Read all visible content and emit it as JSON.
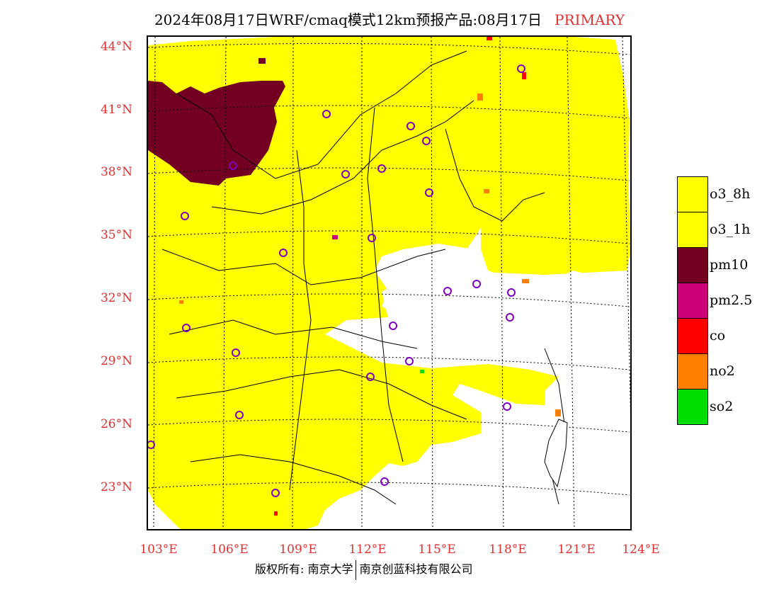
{
  "header": {
    "title": "2024年08月17日WRF/cmaq模式12km预报产品:08月17日",
    "tag": "PRIMARY"
  },
  "map": {
    "lat_labels": [
      "44°N",
      "41°N",
      "38°N",
      "35°N",
      "32°N",
      "29°N",
      "26°N",
      "23°N"
    ],
    "lon_labels": [
      "103°E",
      "106°E",
      "109°E",
      "112°E",
      "115°E",
      "118°E",
      "121°E",
      "124°E"
    ],
    "colors": {
      "o3_8h": "#ffff00",
      "pm10": "#730022",
      "no2": "#ff7f00",
      "co": "#ff0000",
      "so2": "#00e000",
      "city_marker": "#8000c0",
      "graticule": "#000000"
    }
  },
  "legend": {
    "items": [
      {
        "label": "o3_8h",
        "color": "#ffff00"
      },
      {
        "label": "o3_1h",
        "color": "#ffff00"
      },
      {
        "label": "pm10",
        "color": "#730022"
      },
      {
        "label": "pm2.5",
        "color": "#cc0077"
      },
      {
        "label": "co",
        "color": "#ff0000"
      },
      {
        "label": "no2",
        "color": "#ff7f00"
      },
      {
        "label": "so2",
        "color": "#00dd00"
      }
    ]
  },
  "footer": {
    "copyright": "版权所有: 南京大学",
    "company": "南京创蓝科技有限公司"
  }
}
